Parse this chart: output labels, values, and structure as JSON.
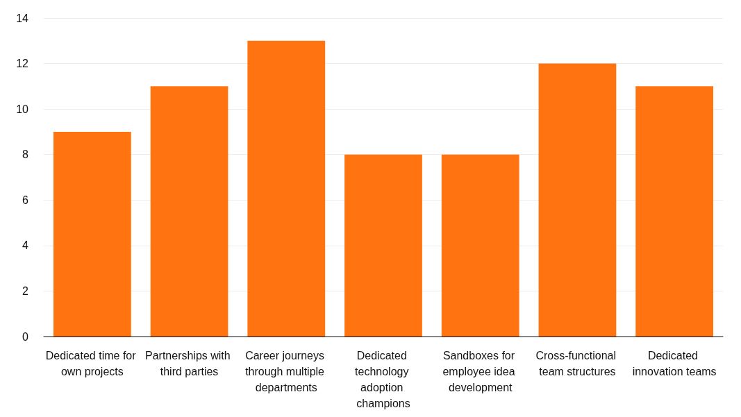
{
  "chart_data": {
    "type": "bar",
    "categories": [
      "Dedicated time for own projects",
      "Partnerships with third parties",
      "Career journeys through multiple departments",
      "Dedicated technology adoption champions",
      "Sandboxes for employee idea development",
      "Cross-functional team structures",
      "Dedicated innovation teams"
    ],
    "values": [
      9,
      11,
      13,
      8,
      8,
      12,
      11
    ],
    "color": "#ff7410",
    "ylim": [
      0,
      14
    ],
    "yticks": [
      0,
      2,
      4,
      6,
      8,
      10,
      12,
      14
    ],
    "grid": "y"
  }
}
